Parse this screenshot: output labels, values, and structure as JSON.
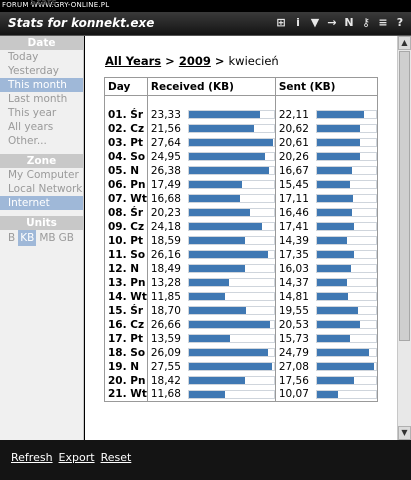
{
  "watermark": "FORUM WWW.GRY-ONLINE.PL",
  "ghost_title": "Stats",
  "window": {
    "title": "Stats for konnekt.exe"
  },
  "toolbar": {
    "icons": [
      "pin-icon",
      "info-icon",
      "filter-icon",
      "arrow-right-icon",
      "n-icon",
      "key-icon",
      "list-icon",
      "help-icon"
    ],
    "glyphs": [
      "⊞",
      "i",
      "▼",
      "→",
      "N",
      "⚷",
      "≡",
      "?"
    ]
  },
  "sidebar": {
    "date_header": "Date",
    "date_items": [
      "Today",
      "Yesterday",
      "This month",
      "Last month",
      "This year",
      "All years",
      "Other..."
    ],
    "date_selected": 2,
    "zone_header": "Zone",
    "zone_items": [
      "My Computer",
      "Local Network",
      "Internet"
    ],
    "zone_selected": 2,
    "units_header": "Units",
    "units": [
      "B",
      "KB",
      "MB",
      "GB"
    ],
    "units_selected": 1
  },
  "breadcrumb": {
    "all": "All Years",
    "sep1": ">",
    "year": "2009",
    "sep2": ">",
    "month": "kwiecień"
  },
  "table": {
    "headers": {
      "day": "Day",
      "received": "Received (KB)",
      "sent": "Sent (KB)"
    },
    "max_value": 28.0,
    "rows": [
      {
        "day": "01. Śr",
        "received": "23,33",
        "sent": "22,11"
      },
      {
        "day": "02. Cz",
        "received": "21,56",
        "sent": "20,62"
      },
      {
        "day": "03. Pt",
        "received": "27,64",
        "sent": "20,61"
      },
      {
        "day": "04. So",
        "received": "24,95",
        "sent": "20,26"
      },
      {
        "day": "05. N",
        "received": "26,38",
        "sent": "16,67"
      },
      {
        "day": "06. Pn",
        "received": "17,49",
        "sent": "15,45"
      },
      {
        "day": "07. Wt",
        "received": "16,68",
        "sent": "17,11"
      },
      {
        "day": "08. Śr",
        "received": "20,23",
        "sent": "16,46"
      },
      {
        "day": "09. Cz",
        "received": "24,18",
        "sent": "17,41"
      },
      {
        "day": "10. Pt",
        "received": "18,59",
        "sent": "14,39"
      },
      {
        "day": "11. So",
        "received": "26,16",
        "sent": "17,35"
      },
      {
        "day": "12. N",
        "received": "18,49",
        "sent": "16,03"
      },
      {
        "day": "13. Pn",
        "received": "13,28",
        "sent": "14,37"
      },
      {
        "day": "14. Wt",
        "received": "11,85",
        "sent": "14,81"
      },
      {
        "day": "15. Śr",
        "received": "18,70",
        "sent": "19,55"
      },
      {
        "day": "16. Cz",
        "received": "26,66",
        "sent": "20,53"
      },
      {
        "day": "17. Pt",
        "received": "13,59",
        "sent": "15,73"
      },
      {
        "day": "18. So",
        "received": "26,09",
        "sent": "24,79"
      },
      {
        "day": "19. N",
        "received": "27,55",
        "sent": "27,08"
      },
      {
        "day": "20. Pn",
        "received": "18,42",
        "sent": "17,56"
      },
      {
        "day": "21. Wt",
        "received": "11,68",
        "sent": "10,07"
      }
    ]
  },
  "footer": {
    "refresh": "Refresh",
    "export": "Export",
    "reset": "Reset"
  },
  "colors": {
    "bar": "#3f78b3",
    "selected": "#9fb8d8",
    "header": "#c8c8c8"
  }
}
